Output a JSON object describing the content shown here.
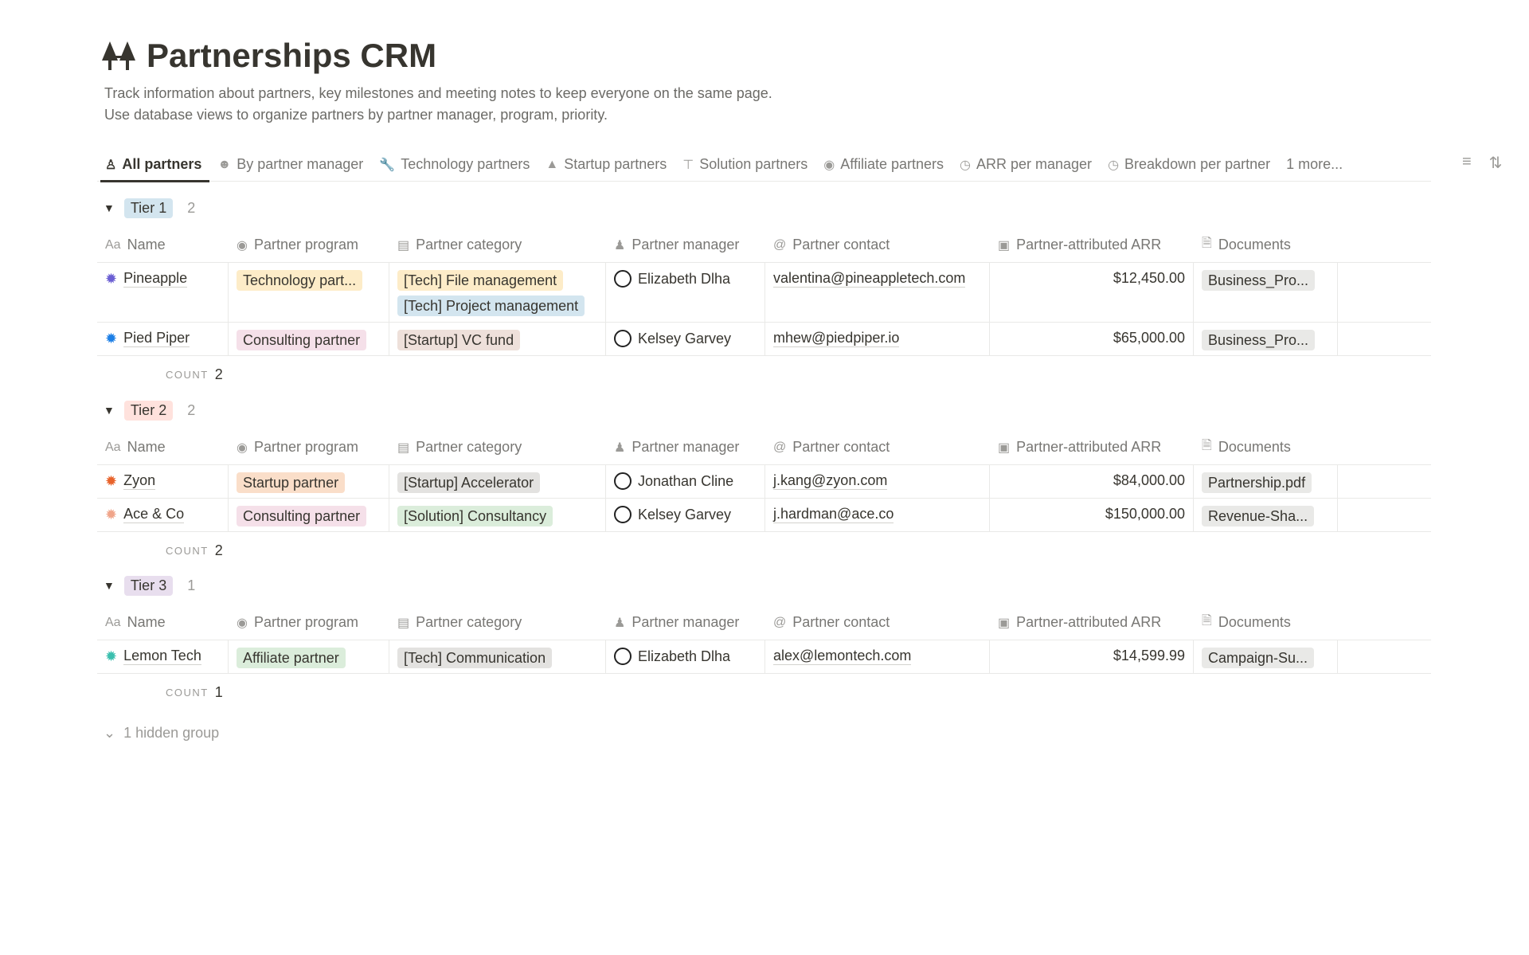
{
  "page": {
    "title": "Partnerships CRM",
    "description": [
      "Track information about partners, key milestones and meeting notes to keep everyone on the same page.",
      "Use database views to organize partners by partner manager, program, priority."
    ]
  },
  "tabs": [
    {
      "label": "All partners",
      "icon": "people-group-icon",
      "active": true
    },
    {
      "label": "By partner manager",
      "icon": "user-circle-icon"
    },
    {
      "label": "Technology partners",
      "icon": "wrench-icon"
    },
    {
      "label": "Startup partners",
      "icon": "rocket-icon"
    },
    {
      "label": "Solution partners",
      "icon": "crane-icon"
    },
    {
      "label": "Affiliate partners",
      "icon": "coins-icon"
    },
    {
      "label": "ARR per manager",
      "icon": "pie-chart-icon"
    },
    {
      "label": "Breakdown per partner",
      "icon": "pie-chart-icon"
    },
    {
      "label": "1 more..."
    }
  ],
  "columns": [
    "Name",
    "Partner program",
    "Partner category",
    "Partner manager",
    "Partner contact",
    "Partner-attributed ARR",
    "Documents"
  ],
  "column_icons": [
    "Aa",
    "select-icon",
    "multiselect-icon",
    "people-icon",
    "@",
    "money-icon",
    "file-icon"
  ],
  "count_label": "COUNT",
  "tag_colors": {
    "yellow": "#fdecc8",
    "blue": "#d3e5ef",
    "pink": "#f5e0e9",
    "brown": "#eee0da",
    "orange": "#fadec9",
    "gray": "#e3e2e0",
    "green": "#dbeddb",
    "purple": "#e8deee",
    "red": "#ffe2dd"
  },
  "groups": [
    {
      "label": "Tier 1",
      "color": "blue",
      "count": "2",
      "rows": [
        {
          "name": "Pineapple",
          "icon": "layers-icon",
          "icon_color": "#6b5fd3",
          "program": {
            "label": "Technology part...",
            "color": "yellow"
          },
          "categories": [
            {
              "label": "[Tech] File management",
              "color": "yellow"
            },
            {
              "label": "[Tech] Project management",
              "color": "blue"
            }
          ],
          "manager": "Elizabeth Dlha",
          "contact": "valentina@pineappletech.com",
          "arr": "$12,450.00",
          "documents": "Business_Pro..."
        },
        {
          "name": "Pied Piper",
          "icon": "circle-logo-icon",
          "icon_color": "#1c7fe6",
          "program": {
            "label": "Consulting partner",
            "color": "pink"
          },
          "categories": [
            {
              "label": "[Startup] VC fund",
              "color": "brown"
            }
          ],
          "manager": "Kelsey Garvey",
          "contact": "mhew@piedpiper.io",
          "arr": "$65,000.00",
          "documents": "Business_Pro..."
        }
      ]
    },
    {
      "label": "Tier 2",
      "color": "red",
      "count": "2",
      "rows": [
        {
          "name": "Zyon",
          "icon": "flower-logo-icon",
          "icon_color": "#e8632b",
          "program": {
            "label": "Startup partner",
            "color": "orange"
          },
          "categories": [
            {
              "label": "[Startup] Accelerator",
              "color": "gray"
            }
          ],
          "manager": "Jonathan Cline",
          "contact": "j.kang@zyon.com",
          "arr": "$84,000.00",
          "documents": "Partnership.pdf"
        },
        {
          "name": "Ace & Co",
          "icon": "asterisk-logo-icon",
          "icon_color": "#f0a58a",
          "program": {
            "label": "Consulting partner",
            "color": "pink"
          },
          "categories": [
            {
              "label": "[Solution] Consultancy",
              "color": "green"
            }
          ],
          "manager": "Kelsey Garvey",
          "contact": "j.hardman@ace.co",
          "arr": "$150,000.00",
          "documents": "Revenue-Sha..."
        }
      ]
    },
    {
      "label": "Tier 3",
      "color": "purple",
      "count": "1",
      "rows": [
        {
          "name": "Lemon Tech",
          "icon": "dots-logo-icon",
          "icon_color": "#3bbfae",
          "program": {
            "label": "Affiliate partner",
            "color": "green"
          },
          "categories": [
            {
              "label": "[Tech] Communication",
              "color": "gray"
            }
          ],
          "manager": "Elizabeth Dlha",
          "contact": "alex@lemontech.com",
          "arr": "$14,599.99",
          "documents": "Campaign-Su..."
        }
      ]
    }
  ],
  "hidden_groups": "1 hidden group"
}
